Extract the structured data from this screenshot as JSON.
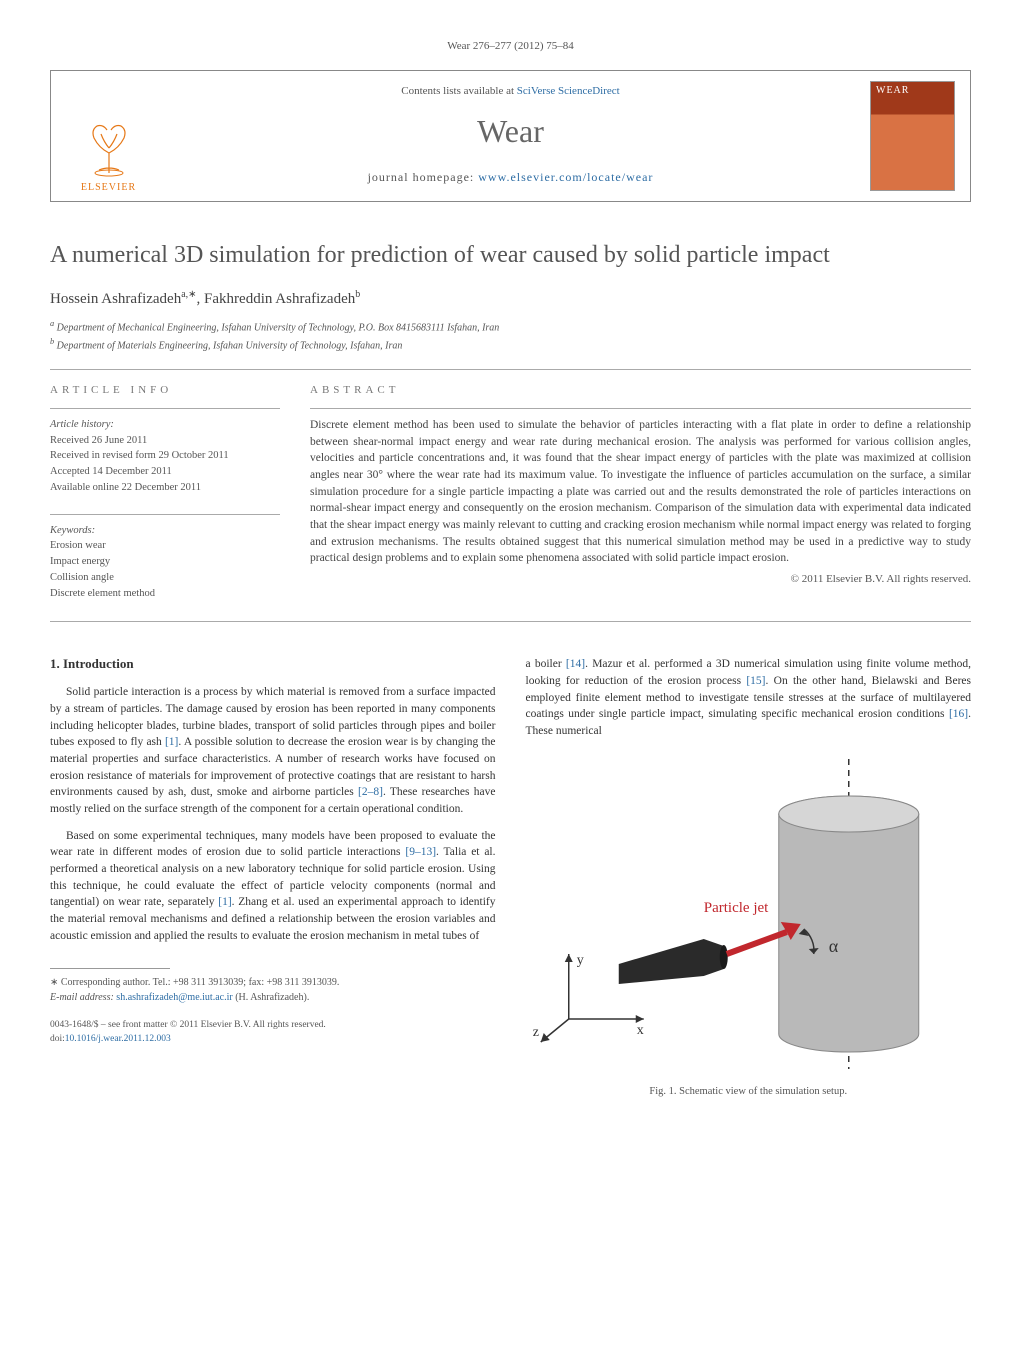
{
  "citation": "Wear 276–277 (2012) 75–84",
  "journalBox": {
    "contentsPrefix": "Contents lists available at ",
    "contentsLink": "SciVerse ScienceDirect",
    "journalName": "Wear",
    "homepagePrefix": "journal homepage: ",
    "homepageLink": "www.elsevier.com/locate/wear",
    "publisherText": "ELSEVIER",
    "coverLabel": "WEAR"
  },
  "title": "A numerical 3D simulation for prediction of wear caused by solid particle impact",
  "authors": "Hossein Ashrafizadeh",
  "authorSupA": "a,∗",
  "author2": ", Fakhreddin Ashrafizadeh",
  "authorSupB": "b",
  "affA": "Department of Mechanical Engineering, Isfahan University of Technology, P.O. Box 8415683111 Isfahan, Iran",
  "affB": "Department of Materials Engineering, Isfahan University of Technology, Isfahan, Iran",
  "info": {
    "label": "article info",
    "historyLabel": "Article history:",
    "h1": "Received 26 June 2011",
    "h2": "Received in revised form 29 October 2011",
    "h3": "Accepted 14 December 2011",
    "h4": "Available online 22 December 2011",
    "kwLabel": "Keywords:",
    "kw1": "Erosion wear",
    "kw2": "Impact energy",
    "kw3": "Collision angle",
    "kw4": "Discrete element method"
  },
  "abstract": {
    "label": "abstract",
    "text": "Discrete element method has been used to simulate the behavior of particles interacting with a flat plate in order to define a relationship between shear-normal impact energy and wear rate during mechanical erosion. The analysis was performed for various collision angles, velocities and particle concentrations and, it was found that the shear impact energy of particles with the plate was maximized at collision angles near 30° where the wear rate had its maximum value. To investigate the influence of particles accumulation on the surface, a similar simulation procedure for a single particle impacting a plate was carried out and the results demonstrated the role of particles interactions on normal-shear impact energy and consequently on the erosion mechanism. Comparison of the simulation data with experimental data indicated that the shear impact energy was mainly relevant to cutting and cracking erosion mechanism while normal impact energy was related to forging and extrusion mechanisms. The results obtained suggest that this numerical simulation method may be used in a predictive way to study practical design problems and to explain some phenomena associated with solid particle impact erosion.",
    "copyright": "© 2011 Elsevier B.V. All rights reserved."
  },
  "body": {
    "sec1": "1.  Introduction",
    "p1": "Solid particle interaction is a process by which material is removed from a surface impacted by a stream of particles. The damage caused by erosion has been reported in many components including helicopter blades, turbine blades, transport of solid particles through pipes and boiler tubes exposed to fly ash [1]. A possible solution to decrease the erosion wear is by changing the material properties and surface characteristics. A number of research works have focused on erosion resistance of materials for improvement of protective coatings that are resistant to harsh environments caused by ash, dust, smoke and airborne particles [2–8]. These researches have mostly relied on the surface strength of the component for a certain operational condition.",
    "p2": "Based on some experimental techniques, many models have been proposed to evaluate the wear rate in different modes of erosion due to solid particle interactions [9–13]. Talia et al. performed a theoretical analysis on a new laboratory technique for solid particle erosion. Using this technique, he could evaluate the effect of particle velocity components (normal and tangential) on wear rate, separately [1]. Zhang et al. used an experimental approach to identify the material removal mechanisms and defined a relationship between the erosion variables and acoustic emission and applied the results to evaluate the erosion mechanism in metal tubes of",
    "p3": "a boiler [14]. Mazur et al. performed a 3D numerical simulation using finite volume method, looking for reduction of the erosion process [15]. On the other hand, Bielawski and Beres employed finite element method to investigate tensile stresses at the surface of multilayered coatings under single particle impact, simulating specific mechanical erosion conditions [16]. These numerical"
  },
  "figure": {
    "particleJetLabel": "Particle jet",
    "alphaLabel": "α",
    "axisX": "x",
    "axisY": "y",
    "axisZ": "z",
    "caption": "Fig. 1.  Schematic view of the simulation setup.",
    "colors": {
      "cylinder": "#b9b9b9",
      "cylinderDark": "#8d8d8d",
      "nozzle": "#2a2a2a",
      "arrow": "#c1272d",
      "label": "#c1272d",
      "axis": "#333333",
      "dash": "#333333"
    }
  },
  "footnotes": {
    "corr": "∗ Corresponding author. Tel.: +98 311 3913039; fax: +98 311 3913039.",
    "emailLabel": "E-mail address: ",
    "email": "sh.ashrafizadeh@me.iut.ac.ir",
    "emailName": " (H. Ashrafizadeh)."
  },
  "bottom": {
    "line1": "0043-1648/$ – see front matter © 2011 Elsevier B.V. All rights reserved.",
    "doiPrefix": "doi:",
    "doi": "10.1016/j.wear.2011.12.003"
  }
}
